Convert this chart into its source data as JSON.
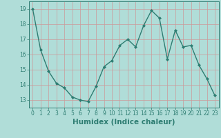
{
  "x": [
    0,
    1,
    2,
    3,
    4,
    5,
    6,
    7,
    8,
    9,
    10,
    11,
    12,
    13,
    14,
    15,
    16,
    17,
    18,
    19,
    20,
    21,
    22,
    23
  ],
  "y": [
    19.0,
    16.3,
    14.9,
    14.1,
    13.8,
    13.2,
    13.0,
    12.9,
    13.9,
    15.2,
    15.6,
    16.6,
    17.0,
    16.5,
    17.9,
    18.9,
    18.4,
    15.7,
    17.6,
    16.5,
    16.6,
    15.3,
    14.4,
    13.3
  ],
  "line_color": "#2e7d72",
  "marker": "D",
  "marker_size": 2.0,
  "bg_color": "#b0ddd8",
  "grid_color": "#cc9999",
  "xlabel": "Humidex (Indice chaleur)",
  "ylim": [
    12.5,
    19.5
  ],
  "xlim": [
    -0.5,
    23.5
  ],
  "yticks": [
    13,
    14,
    15,
    16,
    17,
    18,
    19
  ],
  "xticks": [
    0,
    1,
    2,
    3,
    4,
    5,
    6,
    7,
    8,
    9,
    10,
    11,
    12,
    13,
    14,
    15,
    16,
    17,
    18,
    19,
    20,
    21,
    22,
    23
  ],
  "tick_fontsize": 5.5,
  "xlabel_fontsize": 7.5,
  "line_width": 1.0
}
